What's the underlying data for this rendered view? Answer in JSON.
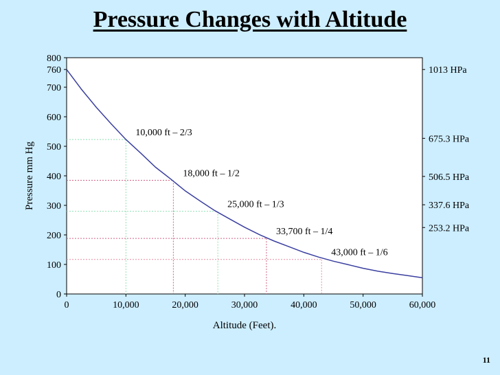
{
  "page": {
    "title": "Pressure Changes with Altitude",
    "page_number": "11",
    "background": "#cdeeff"
  },
  "chart_data": {
    "type": "line",
    "title": "Pressure Changes with Altitude",
    "xlabel": "Altitude (Feet).",
    "ylabel": "Pressure mm Hg",
    "xlim": [
      0,
      60000
    ],
    "ylim": [
      0,
      800
    ],
    "x_ticks": [
      0,
      10000,
      20000,
      30000,
      40000,
      50000,
      60000
    ],
    "x_tick_labels": [
      "0",
      "10,000",
      "20,000",
      "30,000",
      "40,000",
      "50,000",
      "60,000"
    ],
    "y_ticks": [
      0,
      100,
      200,
      300,
      400,
      500,
      600,
      700,
      760,
      800
    ],
    "y_tick_labels": [
      "0",
      "100",
      "200",
      "300",
      "400",
      "500",
      "600",
      "700",
      "760",
      "800"
    ],
    "series": [
      {
        "name": "Pressure",
        "color": "#3a3fa0",
        "x": [
          0,
          2500,
          5000,
          7500,
          10000,
          12500,
          15000,
          17500,
          20000,
          22500,
          25000,
          27500,
          30000,
          32500,
          35000,
          37500,
          40000,
          42500,
          45000,
          47500,
          50000,
          52500,
          55000,
          57500,
          60000
        ],
        "y": [
          760,
          693,
          632,
          576,
          523,
          477,
          429,
          390,
          349,
          315,
          282,
          254,
          226,
          201,
          179,
          160,
          141,
          125,
          111,
          99,
          87,
          77,
          69,
          62,
          55
        ]
      }
    ],
    "annotations": [
      {
        "label": "10,000 ft – 2/3",
        "x": 10000,
        "y": 523,
        "color": "#8fe0b2"
      },
      {
        "label": "18,000 ft – 1/2",
        "x": 18000,
        "y": 385,
        "color": "#d06080"
      },
      {
        "label": "25,000 ft – 1/3",
        "x": 25500,
        "y": 280,
        "color": "#8fe0b2"
      },
      {
        "label": "33,700 ft – 1/4",
        "x": 33700,
        "y": 188,
        "color": "#d06080"
      },
      {
        "label": "43,000 ft – 1/6",
        "x": 43000,
        "y": 117,
        "color": "#e88aa0"
      }
    ],
    "right_axis_labels": [
      {
        "label": "1013 HPa",
        "y": 760
      },
      {
        "label": "675.3 HPa",
        "y": 527
      },
      {
        "label": "506.5 HPa",
        "y": 398
      },
      {
        "label": "337.6 HPa",
        "y": 302
      },
      {
        "label": "253.2 HPa",
        "y": 225
      }
    ],
    "grid": false
  }
}
